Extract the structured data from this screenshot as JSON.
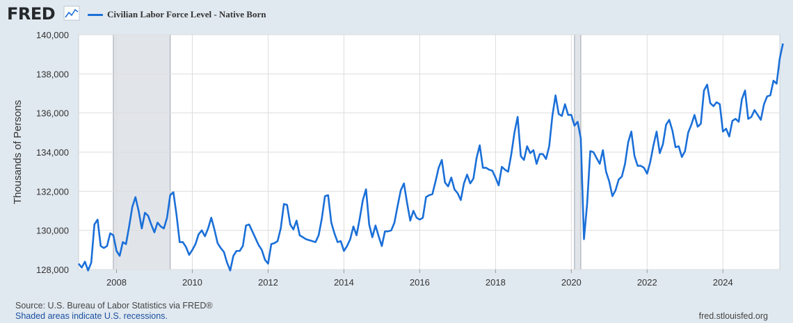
{
  "brand": {
    "logo_text": "FRED",
    "logo_icon": "chart-line-icon"
  },
  "colors": {
    "series": "#1a6fd8",
    "background": "#e1e9f0",
    "plot_background": "#ffffff",
    "recession": "#e1e5ea",
    "grid": "#dddddd"
  },
  "footer": {
    "source": "Source: U.S. Bureau of Labor Statistics via FRED®",
    "note": "Shaded areas indicate U.S. recessions.",
    "url": "fred.stlouisfed.org"
  },
  "chart_data": {
    "type": "line",
    "title": "",
    "xlabel": "",
    "ylabel": "Thousands of Persons",
    "ylim": [
      128000,
      140000
    ],
    "yticks": [
      128000,
      130000,
      132000,
      134000,
      136000,
      138000,
      140000
    ],
    "ytick_labels": [
      "128,000",
      "130,000",
      "132,000",
      "134,000",
      "136,000",
      "138,000",
      "140,000"
    ],
    "xlim": [
      "2007-01",
      "2025-07"
    ],
    "xticks": [
      "2008",
      "2010",
      "2012",
      "2014",
      "2016",
      "2018",
      "2020",
      "2022",
      "2024"
    ],
    "grid": true,
    "legend_position": "top-left",
    "recessions": [
      {
        "start": "2007-12",
        "end": "2009-06"
      },
      {
        "start": "2020-02",
        "end": "2020-04"
      }
    ],
    "series": [
      {
        "name": "Civilian Labor Force Level - Native Born",
        "frequency": "monthly",
        "start": "2007-01",
        "values": [
          128300,
          128100,
          128400,
          127950,
          128350,
          130300,
          130550,
          129200,
          129100,
          129200,
          129850,
          129750,
          128950,
          128700,
          129400,
          129300,
          130200,
          131200,
          131700,
          131000,
          130100,
          130900,
          130750,
          130300,
          129900,
          130400,
          130200,
          130100,
          130650,
          131800,
          131950,
          130800,
          129400,
          129400,
          129150,
          128750,
          129000,
          129300,
          129800,
          130000,
          129700,
          130100,
          130650,
          130050,
          129350,
          129100,
          128900,
          128350,
          127950,
          128700,
          128950,
          128950,
          129200,
          130250,
          130300,
          129950,
          129600,
          129250,
          129000,
          128500,
          128300,
          129300,
          129350,
          129450,
          130100,
          131350,
          131300,
          130300,
          130050,
          130500,
          129750,
          129650,
          129550,
          129500,
          129450,
          129400,
          129750,
          130600,
          131750,
          131800,
          130400,
          129850,
          129400,
          129450,
          128950,
          129200,
          129550,
          130200,
          129750,
          130600,
          131550,
          132100,
          130300,
          129650,
          130250,
          129700,
          129200,
          129950,
          129950,
          130000,
          130400,
          131250,
          132050,
          132400,
          131400,
          130500,
          131000,
          130650,
          130550,
          130650,
          131700,
          131800,
          131850,
          132500,
          133200,
          133600,
          132450,
          132250,
          132700,
          132100,
          131900,
          131550,
          132400,
          132850,
          132400,
          132650,
          133700,
          134350,
          133200,
          133200,
          133100,
          133050,
          132700,
          132300,
          133250,
          133100,
          133000,
          133900,
          135000,
          135800,
          133800,
          133600,
          134300,
          133950,
          134100,
          133400,
          133900,
          133900,
          133650,
          134300,
          135850,
          136900,
          135950,
          135850,
          136450,
          135900,
          135900,
          135350,
          135550,
          134700,
          129550,
          131350,
          134050,
          134000,
          133700,
          133400,
          134100,
          133000,
          132500,
          131750,
          132050,
          132600,
          132750,
          133400,
          134500,
          135050,
          133800,
          133300,
          133300,
          133200,
          132900,
          133500,
          134350,
          135050,
          133950,
          134400,
          135400,
          135650,
          135100,
          134250,
          134300,
          133750,
          134050,
          135000,
          135400,
          135900,
          135300,
          135450,
          137150,
          137450,
          136500,
          136350,
          136550,
          136450,
          135050,
          135200,
          134800,
          135600,
          135700,
          135550,
          136700,
          137150,
          135700,
          135800,
          136150,
          135900,
          135650,
          136450,
          136850,
          136900,
          137650,
          137500,
          138800,
          139550
        ]
      }
    ]
  }
}
